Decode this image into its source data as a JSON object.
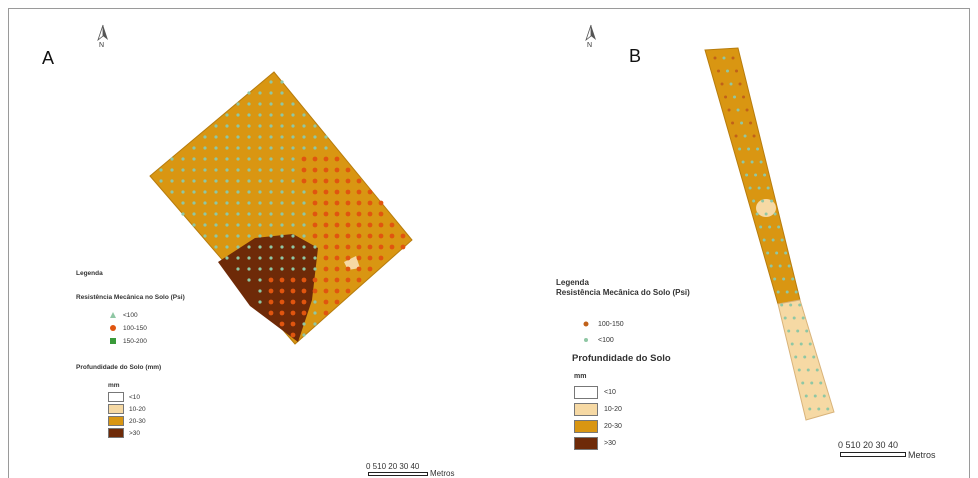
{
  "panels": [
    {
      "id": "A",
      "label": "A",
      "north_letter": "N",
      "legend": {
        "title": "Legenda",
        "resistance_title": "Resistência Mecânica no Solo (Psi)",
        "resistance_items": [
          {
            "label": "<100",
            "color": "#8fc7a4",
            "symbol": "triangle"
          },
          {
            "label": "100-150",
            "color": "#e0550f",
            "symbol": "circle"
          },
          {
            "label": "150-200",
            "color": "#3a9a3a",
            "symbol": "square"
          }
        ],
        "depth_title": "Profundidade do Solo (mm)",
        "depth_unit": "mm",
        "depth_items": [
          {
            "label": "<10",
            "color": "#ffffff"
          },
          {
            "label": "10-20",
            "color": "#f6d9a4"
          },
          {
            "label": "20-30",
            "color": "#d99612"
          },
          {
            "label": ">30",
            "color": "#6e2a08"
          }
        ]
      },
      "scale": {
        "ticks": "0 510  20  30  40",
        "unit": "Metros"
      }
    },
    {
      "id": "B",
      "label": "B",
      "north_letter": "N",
      "legend": {
        "title": "Legenda",
        "resistance_title": "Resistência Mecânica do Solo (Psi)",
        "resistance_items": [
          {
            "label": "100-150",
            "color": "#c0611a",
            "symbol": "circle"
          },
          {
            "label": "<100",
            "color": "#8fc7a4",
            "symbol": "circle"
          }
        ],
        "depth_title": "Profundidade do Solo",
        "depth_unit": "mm",
        "depth_items": [
          {
            "label": "<10",
            "color": "#ffffff"
          },
          {
            "label": "10-20",
            "color": "#f6d9a4"
          },
          {
            "label": "20-30",
            "color": "#d99612"
          },
          {
            "label": ">30",
            "color": "#6e2a08"
          }
        ]
      },
      "scale": {
        "ticks": "0 510  20  30  40",
        "unit": "Metros"
      }
    }
  ],
  "colors": {
    "field_main": "#d99612",
    "field_dark": "#6e2a08",
    "field_light": "#f6d9a4",
    "point_low": "#8fc7a4",
    "point_mid": "#e0550f",
    "point_high": "#3a9a3a"
  }
}
